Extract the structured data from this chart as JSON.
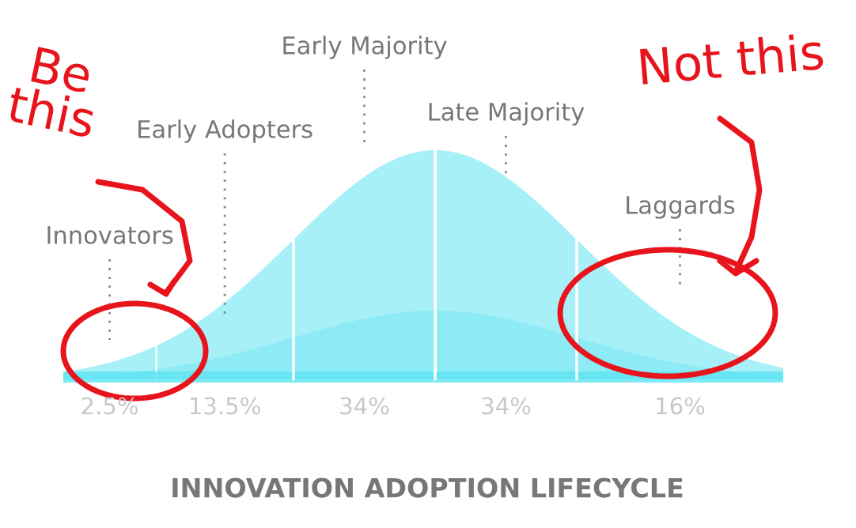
{
  "chart_data": {
    "type": "other",
    "title": "INNOVATION ADOPTION LIFECYCLE",
    "categories": [
      "Innovators",
      "Early Adopters",
      "Early Majority",
      "Late Majority",
      "Laggards"
    ],
    "values": [
      2.5,
      13.5,
      34,
      34,
      16
    ],
    "value_labels": [
      "2.5%",
      "13.5%",
      "34%",
      "34%",
      "16%"
    ],
    "color": "#5fe3f2",
    "annotations": [
      "Be this",
      "Not this"
    ]
  }
}
